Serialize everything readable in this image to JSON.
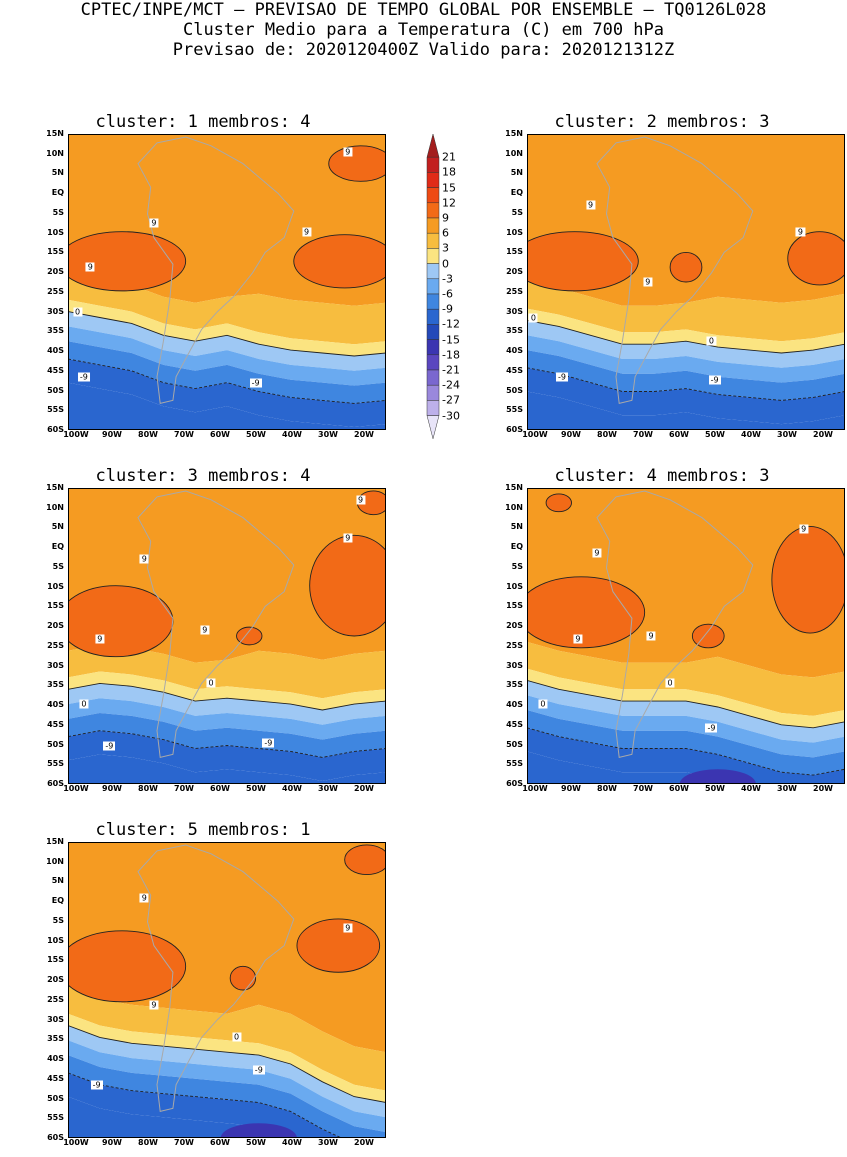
{
  "header": {
    "line1": "CPTEC/INPE/MCT – PREVISAO DE TEMPO GLOBAL POR ENSEMBLE – TQ0126L028",
    "line2": "Cluster Medio para a Temperatura (C) em 700 hPa",
    "line3": "Previsao de: 2020120400Z   Valido para: 2020121312Z"
  },
  "axes": {
    "lat_labels": [
      "15N",
      "10N",
      "5N",
      "EQ",
      "5S",
      "10S",
      "15S",
      "20S",
      "25S",
      "30S",
      "35S",
      "40S",
      "45S",
      "50S",
      "55S",
      "60S"
    ],
    "lon_labels": [
      "100W",
      "90W",
      "80W",
      "70W",
      "60W",
      "50W",
      "40W",
      "30W",
      "20W"
    ]
  },
  "colorbar": {
    "labels": [
      "21",
      "18",
      "15",
      "12",
      "9",
      "6",
      "3",
      "0",
      "-3",
      "-6",
      "-9",
      "-12",
      "-15",
      "-18",
      "-21",
      "-24",
      "-27",
      "-30"
    ],
    "colors": [
      "#a31d1d",
      "#c21f1f",
      "#e02b18",
      "#ee4a14",
      "#f26a17",
      "#f59b22",
      "#f7bd3f",
      "#fbe481",
      "#9ec8f4",
      "#6aaaf0",
      "#3f86e0",
      "#2a66cf",
      "#2449b9",
      "#3b35b1",
      "#5a46bf",
      "#7a67cf",
      "#9a88dc",
      "#bdb0ea",
      "#e8e4f8"
    ]
  },
  "panels": [
    {
      "title": "cluster: 1   membros: 4",
      "contours": [
        "9",
        "9",
        "9",
        "9",
        "0",
        "-9",
        "-9"
      ]
    },
    {
      "title": "cluster: 2   membros: 3",
      "contours": [
        "9",
        "9",
        "9",
        "0",
        "0",
        "-9",
        "-9"
      ]
    },
    {
      "title": "cluster: 3   membros: 4",
      "contours": [
        "9",
        "9",
        "9",
        "9",
        "9",
        "0",
        "0",
        "-9",
        "-9"
      ]
    },
    {
      "title": "cluster: 4   membros: 3",
      "contours": [
        "9",
        "9",
        "9",
        "9",
        "0",
        "0",
        "-9"
      ]
    },
    {
      "title": "cluster: 5   membros: 1",
      "contours": [
        "9",
        "9",
        "9",
        "0",
        "-9",
        "-9"
      ]
    }
  ]
}
